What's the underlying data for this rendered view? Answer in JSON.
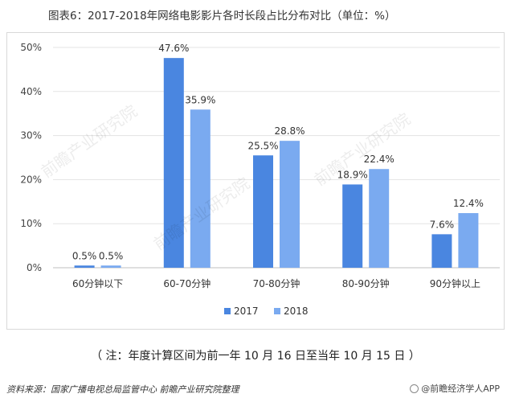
{
  "title": "图表6：2017-2018年网络电影影片各时长段占比分布对比（单位：%）",
  "chart_data": {
    "type": "bar",
    "title": "图表6：2017-2018年网络电影影片各时长段占比分布对比（单位：%）",
    "categories": [
      "60分钟以下",
      "60-70分钟",
      "70-80分钟",
      "80-90分钟",
      "90分钟以上"
    ],
    "series": [
      {
        "name": "2017",
        "values": [
          0.5,
          47.6,
          25.5,
          18.9,
          7.6
        ],
        "color": "#4a86e0"
      },
      {
        "name": "2018",
        "values": [
          0.5,
          35.9,
          28.8,
          22.4,
          12.4
        ],
        "color": "#7aaaf0"
      }
    ],
    "value_labels": [
      [
        "0.5%",
        "47.6%",
        "25.5%",
        "18.9%",
        "7.6%"
      ],
      [
        "0.5%",
        "35.9%",
        "28.8%",
        "22.4%",
        "12.4%"
      ]
    ],
    "yticks": [
      "0%",
      "10%",
      "20%",
      "30%",
      "40%",
      "50%"
    ],
    "ylim": [
      0,
      50
    ],
    "xlabel": "",
    "ylabel": "",
    "grid": true,
    "legend_position": "bottom"
  },
  "note": "（ 注：年度计算区间为前一年 10 月 16 日至当年 10 月 15 日 ）",
  "source": "资料来源：国家广播电视总局监管中心  前瞻产业研究院整理",
  "brand": "@前瞻经济学人APP",
  "brand_icon": "logo-icon",
  "watermark": "前瞻产业研究院"
}
